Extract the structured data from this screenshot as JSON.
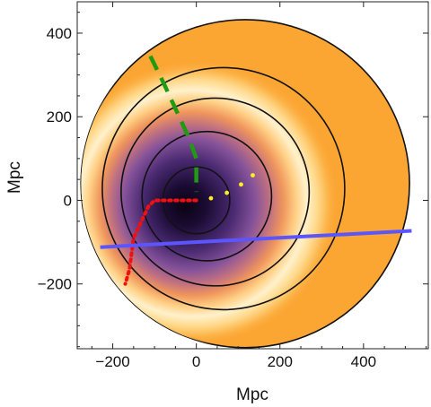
{
  "chart_data": {
    "type": "heatmap",
    "xlabel": "Mpc",
    "ylabel": "Mpc",
    "xlim": [
      -285,
      555
    ],
    "ylim": [
      -355,
      475
    ],
    "x_ticks": [
      -200,
      0,
      200,
      400
    ],
    "y_ticks": [
      -200,
      0,
      200,
      400
    ],
    "x_tick_labels": [
      "−200",
      "0",
      "200",
      "400"
    ],
    "y_tick_labels": [
      "−200",
      "0",
      "200",
      "400"
    ],
    "disk": {
      "center": [
        117,
        40
      ],
      "radius": 393
    },
    "circles": [
      {
        "center": [
          0,
          0
        ],
        "radius": 80
      },
      {
        "center": [
          25,
          10
        ],
        "radius": 155
      },
      {
        "center": [
          45,
          20
        ],
        "radius": 225
      },
      {
        "center": [
          65,
          28
        ],
        "radius": 290
      }
    ],
    "colors": {
      "background": "#fba533",
      "void_core": "#0c0414",
      "void_mid": "#6b3a8e",
      "ridge": "#fff3cc"
    },
    "series": [
      {
        "style": "green-dashed",
        "color": "#1f9a11",
        "points": [
          [
            -110,
            345
          ],
          [
            -78,
            280
          ],
          [
            -48,
            215
          ],
          [
            -18,
            150
          ],
          [
            0,
            100
          ],
          [
            0,
            20
          ]
        ]
      },
      {
        "style": "red-dotted",
        "color": "#ee1111",
        "points": [
          [
            0,
            0
          ],
          [
            -100,
            0
          ],
          [
            -115,
            -15
          ],
          [
            -150,
            -90
          ],
          [
            -160,
            -165
          ],
          [
            -170,
            -200
          ]
        ]
      },
      {
        "style": "blue-solid",
        "color": "#5b55ff",
        "points": [
          [
            -230,
            -112
          ],
          [
            515,
            -73
          ]
        ]
      },
      {
        "style": "yellow-points",
        "color": "#ffee22",
        "points": [
          [
            35,
            5
          ],
          [
            73,
            18
          ],
          [
            107,
            38
          ],
          [
            135,
            60
          ]
        ]
      }
    ]
  }
}
